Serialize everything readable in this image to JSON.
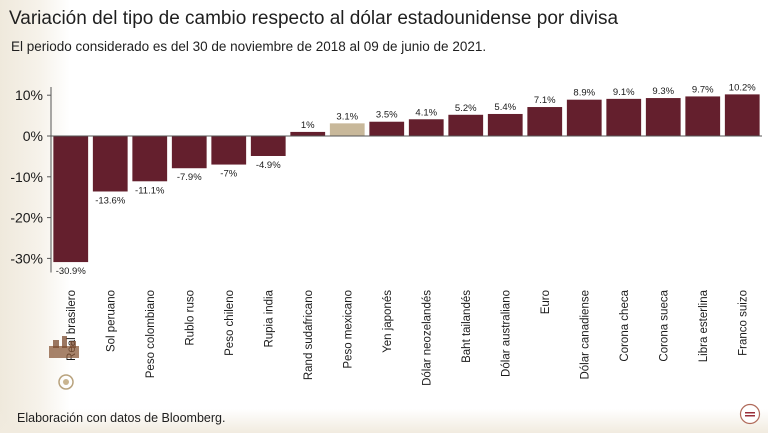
{
  "header": {
    "title": "Variación del tipo de cambio respecto al dólar estadounidense por divisa",
    "subtitle": "El periodo considerado es del 30 de noviembre de 2018 al 09 de junio de 2021."
  },
  "footer": {
    "source": "Elaboración con datos de Bloomberg."
  },
  "colors": {
    "bar": "#641f2d",
    "highlight": "#c8b89a",
    "axis": "#555555",
    "text": "#1a1a1a"
  },
  "chart_data": {
    "type": "bar",
    "categories": [
      "Real brasilero",
      "Sol peruano",
      "Peso colombiano",
      "Rublo ruso",
      "Peso chileno",
      "Rupia india",
      "Rand sudafricano",
      "Peso mexicano",
      "Yen japonés",
      "Dólar neozelandés",
      "Baht tailandés",
      "Dólar australiano",
      "Euro",
      "Dólar canadiense",
      "Corona checa",
      "Corona sueca",
      "Libra esterlina",
      "Franco suizo"
    ],
    "values": [
      -30.9,
      -13.6,
      -11.1,
      -7.9,
      -7,
      -4.9,
      1,
      3.1,
      3.5,
      4.1,
      5.2,
      5.4,
      7.1,
      8.9,
      9.1,
      9.3,
      9.7,
      10.2
    ],
    "value_labels": [
      "-30.9%",
      "-13.6%",
      "-11.1%",
      "-7.9%",
      "-7%",
      "-4.9%",
      "1%",
      "3.1%",
      "3.5%",
      "4.1%",
      "5.2%",
      "5.4%",
      "7.1%",
      "8.9%",
      "9.1%",
      "9.3%",
      "9.7%",
      "10.2%"
    ],
    "highlighted_category": "Peso mexicano",
    "yticks": [
      10,
      0,
      -10,
      -20,
      -30
    ],
    "ytick_labels": [
      "10%",
      "0%",
      "-10%",
      "-20%",
      "-30%"
    ],
    "ylim": [
      -32,
      12
    ],
    "xlabel": "",
    "ylabel": "",
    "grid": false,
    "legend": "none"
  }
}
